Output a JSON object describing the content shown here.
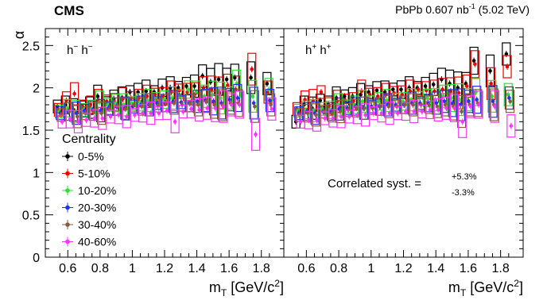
{
  "header": {
    "experiment": "CMS",
    "dataset_prefix": "PbPb 0.607 nb",
    "dataset_sup": "-1",
    "dataset_suffix": " (5.02 TeV)"
  },
  "chart_data": {
    "type": "scatter",
    "ylabel": "α",
    "xlabel_main": "m",
    "xlabel_sub": "T",
    "xlabel_unit": " [GeV/c",
    "xlabel_unit_sup": "2",
    "xlabel_unit_end": "]",
    "xlim": [
      0.5,
      1.9
    ],
    "ylim": [
      0,
      2.7
    ],
    "y_ticks": [
      "0",
      "0.5",
      "1",
      "1.5",
      "2",
      "2.5"
    ],
    "x_ticks": [
      "0.6",
      "0.8",
      "1",
      "1.2",
      "1.4",
      "1.6",
      "1.8"
    ],
    "x_tick_values": [
      0.6,
      0.8,
      1.0,
      1.2,
      1.4,
      1.6,
      1.8
    ],
    "y_tick_values": [
      0,
      0.5,
      1.0,
      1.5,
      2.0,
      2.5
    ],
    "legend": {
      "title": "Centrality",
      "placement": "left-middle",
      "entries": [
        "0-5%",
        "5-10%",
        "10-20%",
        "20-30%",
        "30-40%",
        "40-60%"
      ]
    },
    "colors": [
      "#000000",
      "#ee0000",
      "#33dd33",
      "#2233ee",
      "#8b5a3c",
      "#ff33ff"
    ],
    "x": [
      0.55,
      0.6,
      0.65,
      0.7,
      0.75,
      0.8,
      0.85,
      0.9,
      0.95,
      1.0,
      1.05,
      1.1,
      1.15,
      1.2,
      1.25,
      1.3,
      1.35,
      1.4,
      1.45,
      1.5,
      1.55,
      1.6,
      1.65,
      1.75,
      1.85
    ],
    "panels": [
      {
        "label_a": "h",
        "sup_a": "−",
        "label_b": " h",
        "sup_b": "−",
        "series": [
          {
            "name": "0-5%",
            "values": [
              1.78,
              1.8,
              1.74,
              1.77,
              1.79,
              1.9,
              1.82,
              1.87,
              1.88,
              1.95,
              1.95,
              1.96,
              1.95,
              2.0,
              2.0,
              2.0,
              2.02,
              2.02,
              2.14,
              2.07,
              2.1,
              2.1,
              2.12,
              2.12,
              2.05
            ]
          },
          {
            "name": "5-10%",
            "values": [
              1.74,
              1.85,
              1.93,
              1.78,
              1.8,
              1.85,
              1.84,
              1.83,
              1.87,
              1.88,
              1.88,
              1.9,
              1.92,
              1.9,
              1.95,
              1.97,
              1.95,
              1.93,
              2.0,
              1.98,
              1.94,
              2.03,
              1.98,
              2.22,
              1.95
            ]
          },
          {
            "name": "10-20%",
            "values": [
              1.72,
              1.76,
              1.72,
              1.74,
              1.75,
              1.83,
              1.8,
              1.82,
              1.8,
              1.82,
              1.83,
              1.85,
              1.87,
              1.86,
              1.88,
              1.9,
              1.98,
              1.95,
              1.9,
              1.92,
              1.88,
              1.88,
              2.05,
              1.9,
              1.98
            ]
          },
          {
            "name": "20-30%",
            "values": [
              1.7,
              1.72,
              1.7,
              1.73,
              1.74,
              1.73,
              1.76,
              1.78,
              1.76,
              1.78,
              1.8,
              1.8,
              1.82,
              1.82,
              1.84,
              1.83,
              1.82,
              1.84,
              1.85,
              1.84,
              1.82,
              1.86,
              1.88,
              1.82,
              1.85
            ]
          },
          {
            "name": "30-40%",
            "values": [
              1.68,
              1.72,
              1.66,
              1.7,
              1.72,
              1.7,
              1.75,
              1.78,
              1.75,
              1.8,
              1.78,
              1.8,
              1.79,
              1.82,
              1.82,
              1.8,
              1.82,
              1.8,
              1.84,
              1.8,
              1.8,
              1.82,
              1.82,
              1.78,
              1.8
            ]
          },
          {
            "name": "40-60%",
            "values": [
              1.6,
              1.63,
              1.6,
              1.62,
              1.64,
              1.64,
              1.66,
              1.68,
              1.66,
              1.68,
              1.7,
              1.7,
              1.7,
              1.73,
              1.6,
              1.72,
              1.75,
              1.74,
              1.76,
              1.76,
              1.78,
              1.8,
              1.8,
              1.45,
              1.75
            ]
          }
        ]
      },
      {
        "label_a": "h",
        "sup_a": "+",
        "label_b": " h",
        "sup_b": "+",
        "annotation_text": "Correlated syst. =",
        "annotation_up": "+5.3%",
        "annotation_down": "-3.3%",
        "series": [
          {
            "name": "0-5%",
            "values": [
              1.6,
              1.8,
              1.76,
              1.85,
              1.8,
              1.88,
              1.9,
              1.9,
              1.92,
              1.95,
              1.97,
              1.95,
              1.98,
              1.98,
              2.0,
              2.0,
              2.02,
              2.04,
              2.1,
              2.05,
              2.0,
              2.05,
              2.32,
              2.2,
              2.4
            ]
          },
          {
            "name": "5-10%",
            "values": [
              1.75,
              1.86,
              1.85,
              1.95,
              1.78,
              1.84,
              1.85,
              1.84,
              1.96,
              1.92,
              1.9,
              1.92,
              1.94,
              1.92,
              1.96,
              1.98,
              1.97,
              1.96,
              1.98,
              1.96,
              1.94,
              2.02,
              2.28,
              2.05,
              2.25
            ]
          },
          {
            "name": "10-20%",
            "values": [
              1.73,
              1.74,
              1.73,
              1.75,
              1.74,
              1.8,
              1.78,
              1.8,
              1.84,
              1.83,
              1.84,
              1.85,
              1.86,
              1.84,
              1.86,
              1.88,
              1.88,
              1.86,
              1.9,
              1.88,
              1.86,
              1.86,
              1.95,
              1.9,
              1.92
            ]
          },
          {
            "name": "20-30%",
            "values": [
              1.7,
              1.72,
              1.7,
              1.72,
              1.72,
              1.75,
              1.76,
              1.78,
              1.76,
              1.78,
              1.78,
              1.8,
              1.8,
              1.8,
              1.82,
              1.82,
              1.82,
              1.82,
              1.84,
              1.82,
              1.8,
              1.84,
              1.86,
              1.84,
              1.88
            ]
          },
          {
            "name": "30-40%",
            "values": [
              1.68,
              1.7,
              1.68,
              1.72,
              1.7,
              1.72,
              1.74,
              1.76,
              1.76,
              1.76,
              1.78,
              1.78,
              1.78,
              1.8,
              1.8,
              1.8,
              1.8,
              1.78,
              1.8,
              1.78,
              1.72,
              1.8,
              1.82,
              1.8,
              1.84
            ]
          },
          {
            "name": "40-60%",
            "values": [
              1.6,
              1.62,
              1.62,
              1.64,
              1.64,
              1.66,
              1.66,
              1.68,
              1.68,
              1.7,
              1.7,
              1.7,
              1.7,
              1.72,
              1.72,
              1.72,
              1.74,
              1.74,
              1.76,
              1.76,
              1.6,
              1.78,
              1.8,
              1.78,
              1.55
            ]
          }
        ]
      }
    ]
  }
}
